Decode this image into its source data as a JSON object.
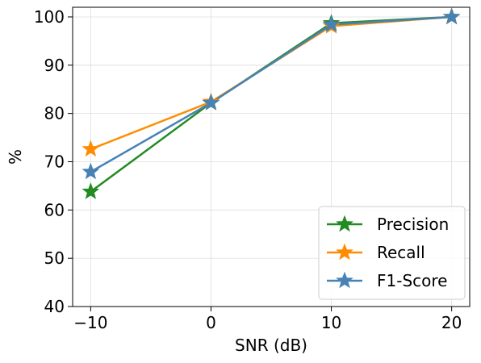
{
  "chart_data": {
    "type": "line",
    "x": [
      -10,
      0,
      10,
      20
    ],
    "x_tick_labels": [
      "−10",
      "0",
      "10",
      "20"
    ],
    "y_ticks": [
      40,
      50,
      60,
      70,
      80,
      90,
      100
    ],
    "xlabel": "SNR (dB)",
    "ylabel": "%",
    "xlim": [
      -11.5,
      21.5
    ],
    "ylim": [
      40,
      102
    ],
    "grid": true,
    "legend_position": "bottom-right",
    "marker": "star",
    "series": [
      {
        "name": "Precision",
        "color": "#228B22",
        "values": [
          63.8,
          82.2,
          98.7,
          100
        ]
      },
      {
        "name": "Recall",
        "color": "#FF8C00",
        "values": [
          72.6,
          82.4,
          98.1,
          100
        ]
      },
      {
        "name": "F1-Score",
        "color": "#4682B4",
        "values": [
          67.9,
          82.2,
          98.4,
          100
        ]
      }
    ]
  }
}
